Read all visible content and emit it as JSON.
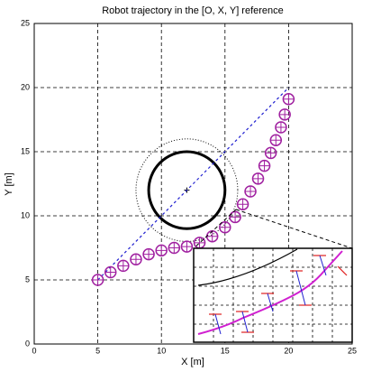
{
  "chart_data": {
    "type": "scatter",
    "title": "Robot trajectory in the [O, X, Y] reference",
    "xlabel": "X [m]",
    "ylabel": "Y [m]",
    "xlim": [
      0,
      25
    ],
    "ylim": [
      0,
      25
    ],
    "xticks": [
      0,
      5,
      10,
      15,
      20,
      25
    ],
    "yticks": [
      0,
      5,
      10,
      15,
      20,
      25
    ],
    "grid": true,
    "trajectory": {
      "color": "#a020a0",
      "x": [
        5,
        6,
        7,
        8,
        9,
        10,
        11,
        12,
        13,
        14,
        15,
        15.8,
        16.4,
        17,
        17.6,
        18.1,
        18.6,
        19,
        19.4,
        19.7,
        20
      ],
      "y": [
        5,
        5.6,
        6.1,
        6.6,
        7,
        7.3,
        7.5,
        7.6,
        7.9,
        8.4,
        9.1,
        9.9,
        10.9,
        11.9,
        12.9,
        13.9,
        14.9,
        15.9,
        16.9,
        17.9,
        19.1
      ]
    },
    "reference_line": {
      "color": "#2020d0",
      "x": [
        5,
        20
      ],
      "y": [
        5,
        20
      ]
    },
    "obstacle": {
      "center_x": 12,
      "center_y": 12,
      "radius": 3,
      "safety_radius": 4
    }
  }
}
